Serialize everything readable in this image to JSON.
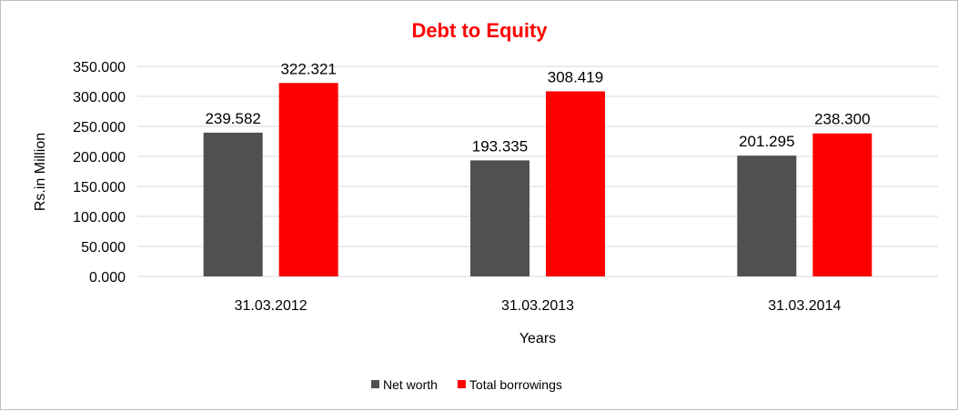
{
  "chart_data": {
    "type": "bar",
    "title": "Debt to Equity",
    "xlabel": "Years",
    "ylabel": "Rs.in Million",
    "categories": [
      "31.03.2012",
      "31.03.2013",
      "31.03.2014"
    ],
    "series": [
      {
        "name": "Net worth",
        "values": [
          239.582,
          193.335,
          201.295
        ],
        "color": "#505050"
      },
      {
        "name": "Total borrowings",
        "values": [
          322.321,
          308.419,
          238.3
        ],
        "color": "#ff0000"
      }
    ],
    "data_labels": [
      [
        "239.582",
        "193.335",
        "201.295"
      ],
      [
        "322.321",
        "308.419",
        "238.300"
      ]
    ],
    "ylim": [
      0,
      350
    ],
    "yticks": [
      0,
      50,
      100,
      150,
      200,
      250,
      300,
      350
    ],
    "ytick_labels": [
      "0.000",
      "50.000",
      "100.000",
      "150.000",
      "200.000",
      "250.000",
      "300.000",
      "350.000"
    ],
    "grid": true,
    "legend_position": "bottom",
    "title_color": "#ff0000",
    "grid_color": "#d9d9d9"
  }
}
